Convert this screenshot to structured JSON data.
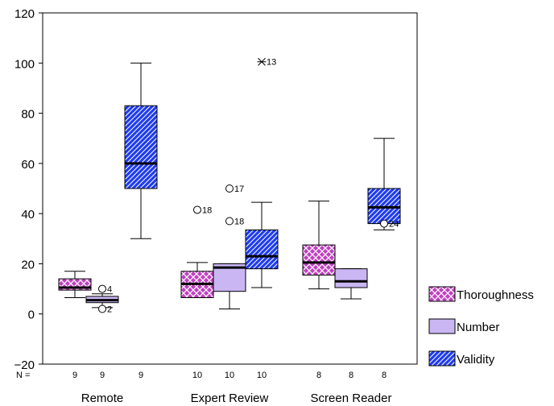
{
  "chart_data": {
    "type": "box",
    "ylim": [
      -20,
      120
    ],
    "yticks": [
      -20,
      0,
      20,
      40,
      60,
      80,
      100,
      120
    ],
    "n_label": "N =",
    "categories": [
      "Remote",
      "Expert Review",
      "Screen Reader"
    ],
    "series": [
      {
        "name": "Thoroughness",
        "color": "#c040c0",
        "pattern": "crosshatch"
      },
      {
        "name": "Number",
        "color": "#c9b6f2",
        "pattern": "none"
      },
      {
        "name": "Validity",
        "color": "#1f3cf0",
        "pattern": "diagonal"
      }
    ],
    "boxes": [
      {
        "group": 0,
        "series": 0,
        "n": "9",
        "min": 6.5,
        "q1": 9.5,
        "median": 10.5,
        "q3": 14,
        "max": 17,
        "outliers": []
      },
      {
        "group": 0,
        "series": 1,
        "n": "9",
        "min": 2.5,
        "q1": 4.5,
        "median": 5.5,
        "q3": 7,
        "max": 8,
        "outliers": [
          {
            "value": 10,
            "label": "4",
            "marker": "circle"
          },
          {
            "value": 2,
            "label": "2",
            "marker": "circle"
          }
        ]
      },
      {
        "group": 0,
        "series": 2,
        "n": "9",
        "min": 30,
        "q1": 50,
        "median": 60,
        "q3": 83,
        "max": 100,
        "outliers": []
      },
      {
        "group": 1,
        "series": 0,
        "n": "10",
        "min": 6.5,
        "q1": 6.5,
        "median": 12,
        "q3": 17,
        "max": 20.5,
        "outliers": [
          {
            "value": 41.5,
            "label": "18",
            "marker": "circle"
          }
        ]
      },
      {
        "group": 1,
        "series": 1,
        "n": "10",
        "min": 2,
        "q1": 9,
        "median": 18.5,
        "q3": 20,
        "max": 20,
        "outliers": [
          {
            "value": 50,
            "label": "17",
            "marker": "circle"
          },
          {
            "value": 37,
            "label": "18",
            "marker": "circle"
          }
        ]
      },
      {
        "group": 1,
        "series": 2,
        "n": "10",
        "min": 10.5,
        "q1": 18,
        "median": 23,
        "q3": 33.5,
        "max": 44.5,
        "outliers": [
          {
            "value": 100.5,
            "label": "13",
            "marker": "star"
          }
        ]
      },
      {
        "group": 2,
        "series": 0,
        "n": "8",
        "min": 10,
        "q1": 15.5,
        "median": 20.5,
        "q3": 27.5,
        "max": 45,
        "outliers": []
      },
      {
        "group": 2,
        "series": 1,
        "n": "8",
        "min": 6,
        "q1": 10.5,
        "median": 13,
        "q3": 18,
        "max": 18,
        "outliers": []
      },
      {
        "group": 2,
        "series": 2,
        "n": "8",
        "min": 33.5,
        "q1": 36,
        "median": 42.5,
        "q3": 50,
        "max": 70,
        "outliers": [
          {
            "value": 36,
            "label": "24",
            "marker": "circle"
          }
        ]
      }
    ]
  }
}
